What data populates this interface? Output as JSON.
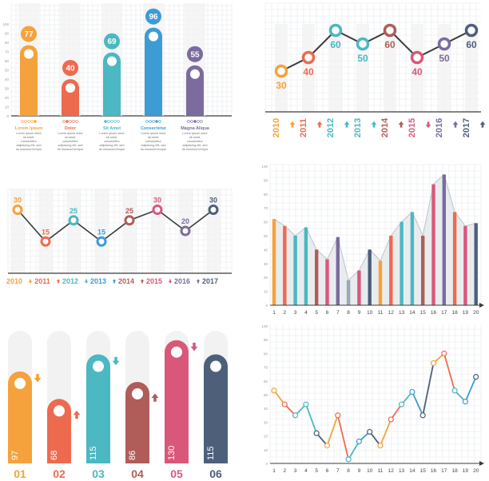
{
  "colors": {
    "orange": "#f5a23c",
    "coral": "#ee6a4f",
    "teal": "#4bb8c2",
    "blue": "#3d9bd5",
    "purple": "#7b6b9e",
    "brown": "#b05d5a",
    "pink": "#d9587a",
    "slate": "#4e5f7a",
    "grey": "#9aa8b3",
    "grid": "#e4e8ec",
    "axis": "#3a3a3a",
    "band": "#f2f2f2"
  },
  "chart_data": [
    {
      "id": "bars-top-left",
      "type": "bar",
      "ylim": [
        0,
        100
      ],
      "yticks": [
        0,
        10,
        20,
        30,
        40,
        50,
        60,
        70,
        80,
        90,
        100
      ],
      "categories": [
        "Lorem Ipsum",
        "Dolor",
        "Sit Amet",
        "Consectetur",
        "Magna Aliqua"
      ],
      "values": [
        77,
        40,
        69,
        96,
        55
      ],
      "labels": [
        "77",
        "40",
        "69",
        "96",
        "55"
      ],
      "descriptions": [
        "Lorem ipsum dolor sit amet, consectetur adipiscing elit, sed do eiusmod tempor",
        "Lorem ipsum dolor sit amet, consectetur adipiscing elit, sed do eiusmod tempor",
        "Lorem ipsum dolor sit amet, consectetur adipiscing elit, sed do eiusmod tempor",
        "Lorem ipsum dolor sit amet, consectetur adipiscing elit, sed do eiusmod tempor",
        "Lorem ipsum dolor sit amet, consectetur adipiscing elit, sed do eiusmod tempor"
      ],
      "colors": [
        "orange",
        "coral",
        "teal",
        "blue",
        "purple"
      ],
      "pager_active": [
        4,
        1,
        0,
        3,
        2
      ]
    },
    {
      "id": "line-top-right",
      "type": "line",
      "ylim": [
        0,
        80
      ],
      "yticks": [
        0,
        10,
        20,
        30,
        40,
        50,
        60,
        70,
        80
      ],
      "categories": [
        "2010",
        "2011",
        "2012",
        "2013",
        "2014",
        "2015",
        "2016",
        "2017"
      ],
      "values": [
        30,
        40,
        60,
        50,
        60,
        40,
        50,
        60
      ],
      "labels": [
        "30",
        "40",
        "60",
        "50",
        "60",
        "40",
        "50",
        "60"
      ],
      "label_pos": [
        "below",
        "below",
        "below",
        "below",
        "below",
        "below",
        "below",
        "below"
      ],
      "colors": [
        "orange",
        "coral",
        "teal",
        "teal",
        "brown",
        "pink",
        "purple",
        "slate"
      ],
      "arrows": [
        "up",
        "up",
        "up",
        "up",
        "up",
        "down",
        "up",
        "up"
      ]
    },
    {
      "id": "line-middle-left",
      "type": "line",
      "ylim": [
        0,
        40
      ],
      "yticks": [
        0,
        5,
        10,
        15,
        20,
        25,
        30,
        35,
        40
      ],
      "categories": [
        "2010",
        "2011",
        "2012",
        "2013",
        "2014",
        "2015",
        "2016",
        "2017"
      ],
      "values": [
        30,
        15,
        25,
        15,
        25,
        30,
        20,
        30
      ],
      "labels": [
        "30",
        "15",
        "25",
        "15",
        "25",
        "30",
        "20",
        "30"
      ],
      "colors": [
        "orange",
        "coral",
        "teal",
        "blue",
        "brown",
        "pink",
        "purple",
        "slate"
      ],
      "arrows": [
        "down",
        "up",
        "down",
        "up",
        "up",
        "down",
        "up",
        ""
      ]
    },
    {
      "id": "bars-middle-right",
      "type": "bar",
      "ylim": [
        0,
        100
      ],
      "yticks": [
        0,
        10,
        20,
        30,
        40,
        50,
        60,
        70,
        80,
        90,
        100
      ],
      "categories": [
        "1",
        "2",
        "3",
        "4",
        "5",
        "6",
        "7",
        "8",
        "9",
        "10",
        "11",
        "12",
        "13",
        "14",
        "15",
        "16",
        "17",
        "18",
        "19",
        "20"
      ],
      "values": [
        62,
        57,
        50,
        56,
        40,
        33,
        49,
        18,
        25,
        40,
        32,
        50,
        60,
        67,
        50,
        87,
        94,
        67,
        57,
        59
      ],
      "colors": [
        "orange",
        "coral",
        "teal",
        "teal",
        "brown",
        "pink",
        "purple",
        "grey",
        "pink",
        "slate",
        "orange",
        "coral",
        "teal",
        "teal",
        "brown",
        "pink",
        "purple",
        "coral",
        "pink",
        "slate"
      ]
    },
    {
      "id": "pills-bottom-left",
      "type": "bar",
      "ylim": [
        0,
        150
      ],
      "categories": [
        "01",
        "02",
        "03",
        "04",
        "05",
        "06"
      ],
      "values": [
        97,
        68,
        115,
        86,
        130,
        115
      ],
      "labels": [
        "97",
        "68",
        "115",
        "86",
        "130",
        "115"
      ],
      "colors": [
        "orange",
        "coral",
        "teal",
        "brown",
        "pink",
        "slate"
      ],
      "arrows": [
        "down",
        "up",
        "down",
        "up",
        "down",
        ""
      ]
    },
    {
      "id": "line-bottom-right",
      "type": "line",
      "ylim": [
        0,
        100
      ],
      "yticks": [
        0,
        10,
        20,
        30,
        40,
        50,
        60,
        70,
        80,
        90,
        100
      ],
      "categories": [
        "1",
        "2",
        "3",
        "4",
        "5",
        "6",
        "7",
        "8",
        "9",
        "10",
        "11",
        "12",
        "13",
        "14",
        "15",
        "16",
        "17",
        "18",
        "19",
        "20"
      ],
      "values": [
        53,
        43,
        35,
        43,
        22,
        13,
        35,
        3,
        16,
        23,
        13,
        32,
        43,
        52,
        35,
        73,
        80,
        53,
        45,
        63
      ],
      "colors": [
        "orange",
        "coral",
        "teal",
        "teal",
        "slate",
        "orange",
        "coral",
        "teal",
        "blue",
        "slate",
        "orange",
        "coral",
        "teal",
        "blue",
        "slate",
        "orange",
        "coral",
        "teal",
        "blue",
        "slate"
      ]
    }
  ]
}
